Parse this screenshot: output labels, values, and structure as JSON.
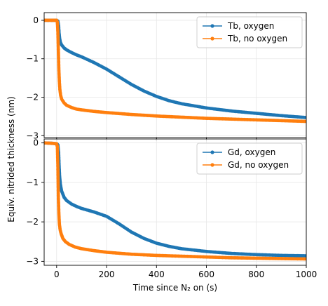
{
  "chart_data": {
    "type": "line",
    "layout": "two stacked panels, shared x-axis",
    "grid": true,
    "xlabel": "Time since N₂ on (s)",
    "ylabel": "Equiv. nitrided thickness (nm)",
    "xlim": [
      -50,
      1000
    ],
    "xticks": [
      0,
      200,
      400,
      600,
      800,
      1000
    ],
    "colors": {
      "oxygen": "#1f77b4",
      "no_oxygen": "#ff7f0e"
    },
    "panels": [
      {
        "ylim": [
          -3.05,
          0.2
        ],
        "yticks": [
          0,
          -1,
          -2,
          -3
        ],
        "legend": "upper right",
        "series": [
          {
            "name": "Tb, oxygen",
            "color": "#1f77b4",
            "points": [
              [
                -50,
                0
              ],
              [
                -20,
                0
              ],
              [
                0,
                0
              ],
              [
                5,
                -0.02
              ],
              [
                8,
                -0.15
              ],
              [
                10,
                -0.35
              ],
              [
                12,
                -0.47
              ],
              [
                15,
                -0.57
              ],
              [
                20,
                -0.64
              ],
              [
                30,
                -0.72
              ],
              [
                40,
                -0.77
              ],
              [
                60,
                -0.84
              ],
              [
                80,
                -0.9
              ],
              [
                100,
                -0.95
              ],
              [
                150,
                -1.1
              ],
              [
                200,
                -1.27
              ],
              [
                250,
                -1.47
              ],
              [
                300,
                -1.67
              ],
              [
                350,
                -1.84
              ],
              [
                400,
                -1.98
              ],
              [
                450,
                -2.09
              ],
              [
                500,
                -2.17
              ],
              [
                600,
                -2.28
              ],
              [
                700,
                -2.36
              ],
              [
                800,
                -2.42
              ],
              [
                900,
                -2.48
              ],
              [
                1000,
                -2.53
              ]
            ]
          },
          {
            "name": "Tb, no oxygen",
            "color": "#ff7f0e",
            "points": [
              [
                -50,
                0
              ],
              [
                -20,
                0
              ],
              [
                0,
                0
              ],
              [
                3,
                -0.05
              ],
              [
                5,
                -0.3
              ],
              [
                7,
                -0.8
              ],
              [
                9,
                -1.3
              ],
              [
                11,
                -1.6
              ],
              [
                13,
                -1.8
              ],
              [
                16,
                -1.95
              ],
              [
                20,
                -2.05
              ],
              [
                30,
                -2.15
              ],
              [
                40,
                -2.21
              ],
              [
                60,
                -2.27
              ],
              [
                80,
                -2.31
              ],
              [
                100,
                -2.33
              ],
              [
                150,
                -2.37
              ],
              [
                200,
                -2.4
              ],
              [
                300,
                -2.45
              ],
              [
                400,
                -2.49
              ],
              [
                500,
                -2.52
              ],
              [
                600,
                -2.55
              ],
              [
                700,
                -2.57
              ],
              [
                800,
                -2.59
              ],
              [
                900,
                -2.61
              ],
              [
                1000,
                -2.63
              ]
            ]
          }
        ]
      },
      {
        "ylim": [
          -3.1,
          0.1
        ],
        "yticks": [
          0,
          -1,
          -2,
          -3
        ],
        "legend": "upper right",
        "series": [
          {
            "name": "Gd, oxygen",
            "color": "#1f77b4",
            "points": [
              [
                -50,
                0
              ],
              [
                -20,
                -0.01
              ],
              [
                0,
                -0.02
              ],
              [
                5,
                -0.05
              ],
              [
                8,
                -0.25
              ],
              [
                10,
                -0.6
              ],
              [
                12,
                -0.85
              ],
              [
                15,
                -1.05
              ],
              [
                20,
                -1.22
              ],
              [
                30,
                -1.38
              ],
              [
                40,
                -1.46
              ],
              [
                60,
                -1.55
              ],
              [
                80,
                -1.61
              ],
              [
                100,
                -1.66
              ],
              [
                150,
                -1.75
              ],
              [
                200,
                -1.86
              ],
              [
                250,
                -2.05
              ],
              [
                300,
                -2.26
              ],
              [
                350,
                -2.42
              ],
              [
                400,
                -2.54
              ],
              [
                450,
                -2.62
              ],
              [
                500,
                -2.68
              ],
              [
                600,
                -2.75
              ],
              [
                700,
                -2.8
              ],
              [
                800,
                -2.83
              ],
              [
                900,
                -2.85
              ],
              [
                1000,
                -2.86
              ]
            ]
          },
          {
            "name": "Gd, no oxygen",
            "color": "#ff7f0e",
            "points": [
              [
                -50,
                0
              ],
              [
                -20,
                -0.01
              ],
              [
                0,
                -0.02
              ],
              [
                3,
                -0.1
              ],
              [
                5,
                -0.6
              ],
              [
                7,
                -1.4
              ],
              [
                9,
                -1.8
              ],
              [
                11,
                -2.05
              ],
              [
                14,
                -2.2
              ],
              [
                18,
                -2.3
              ],
              [
                25,
                -2.42
              ],
              [
                35,
                -2.5
              ],
              [
                50,
                -2.57
              ],
              [
                75,
                -2.64
              ],
              [
                100,
                -2.68
              ],
              [
                150,
                -2.73
              ],
              [
                200,
                -2.77
              ],
              [
                300,
                -2.82
              ],
              [
                400,
                -2.85
              ],
              [
                500,
                -2.87
              ],
              [
                600,
                -2.89
              ],
              [
                700,
                -2.91
              ],
              [
                800,
                -2.92
              ],
              [
                900,
                -2.93
              ],
              [
                1000,
                -2.94
              ]
            ]
          }
        ]
      }
    ]
  }
}
